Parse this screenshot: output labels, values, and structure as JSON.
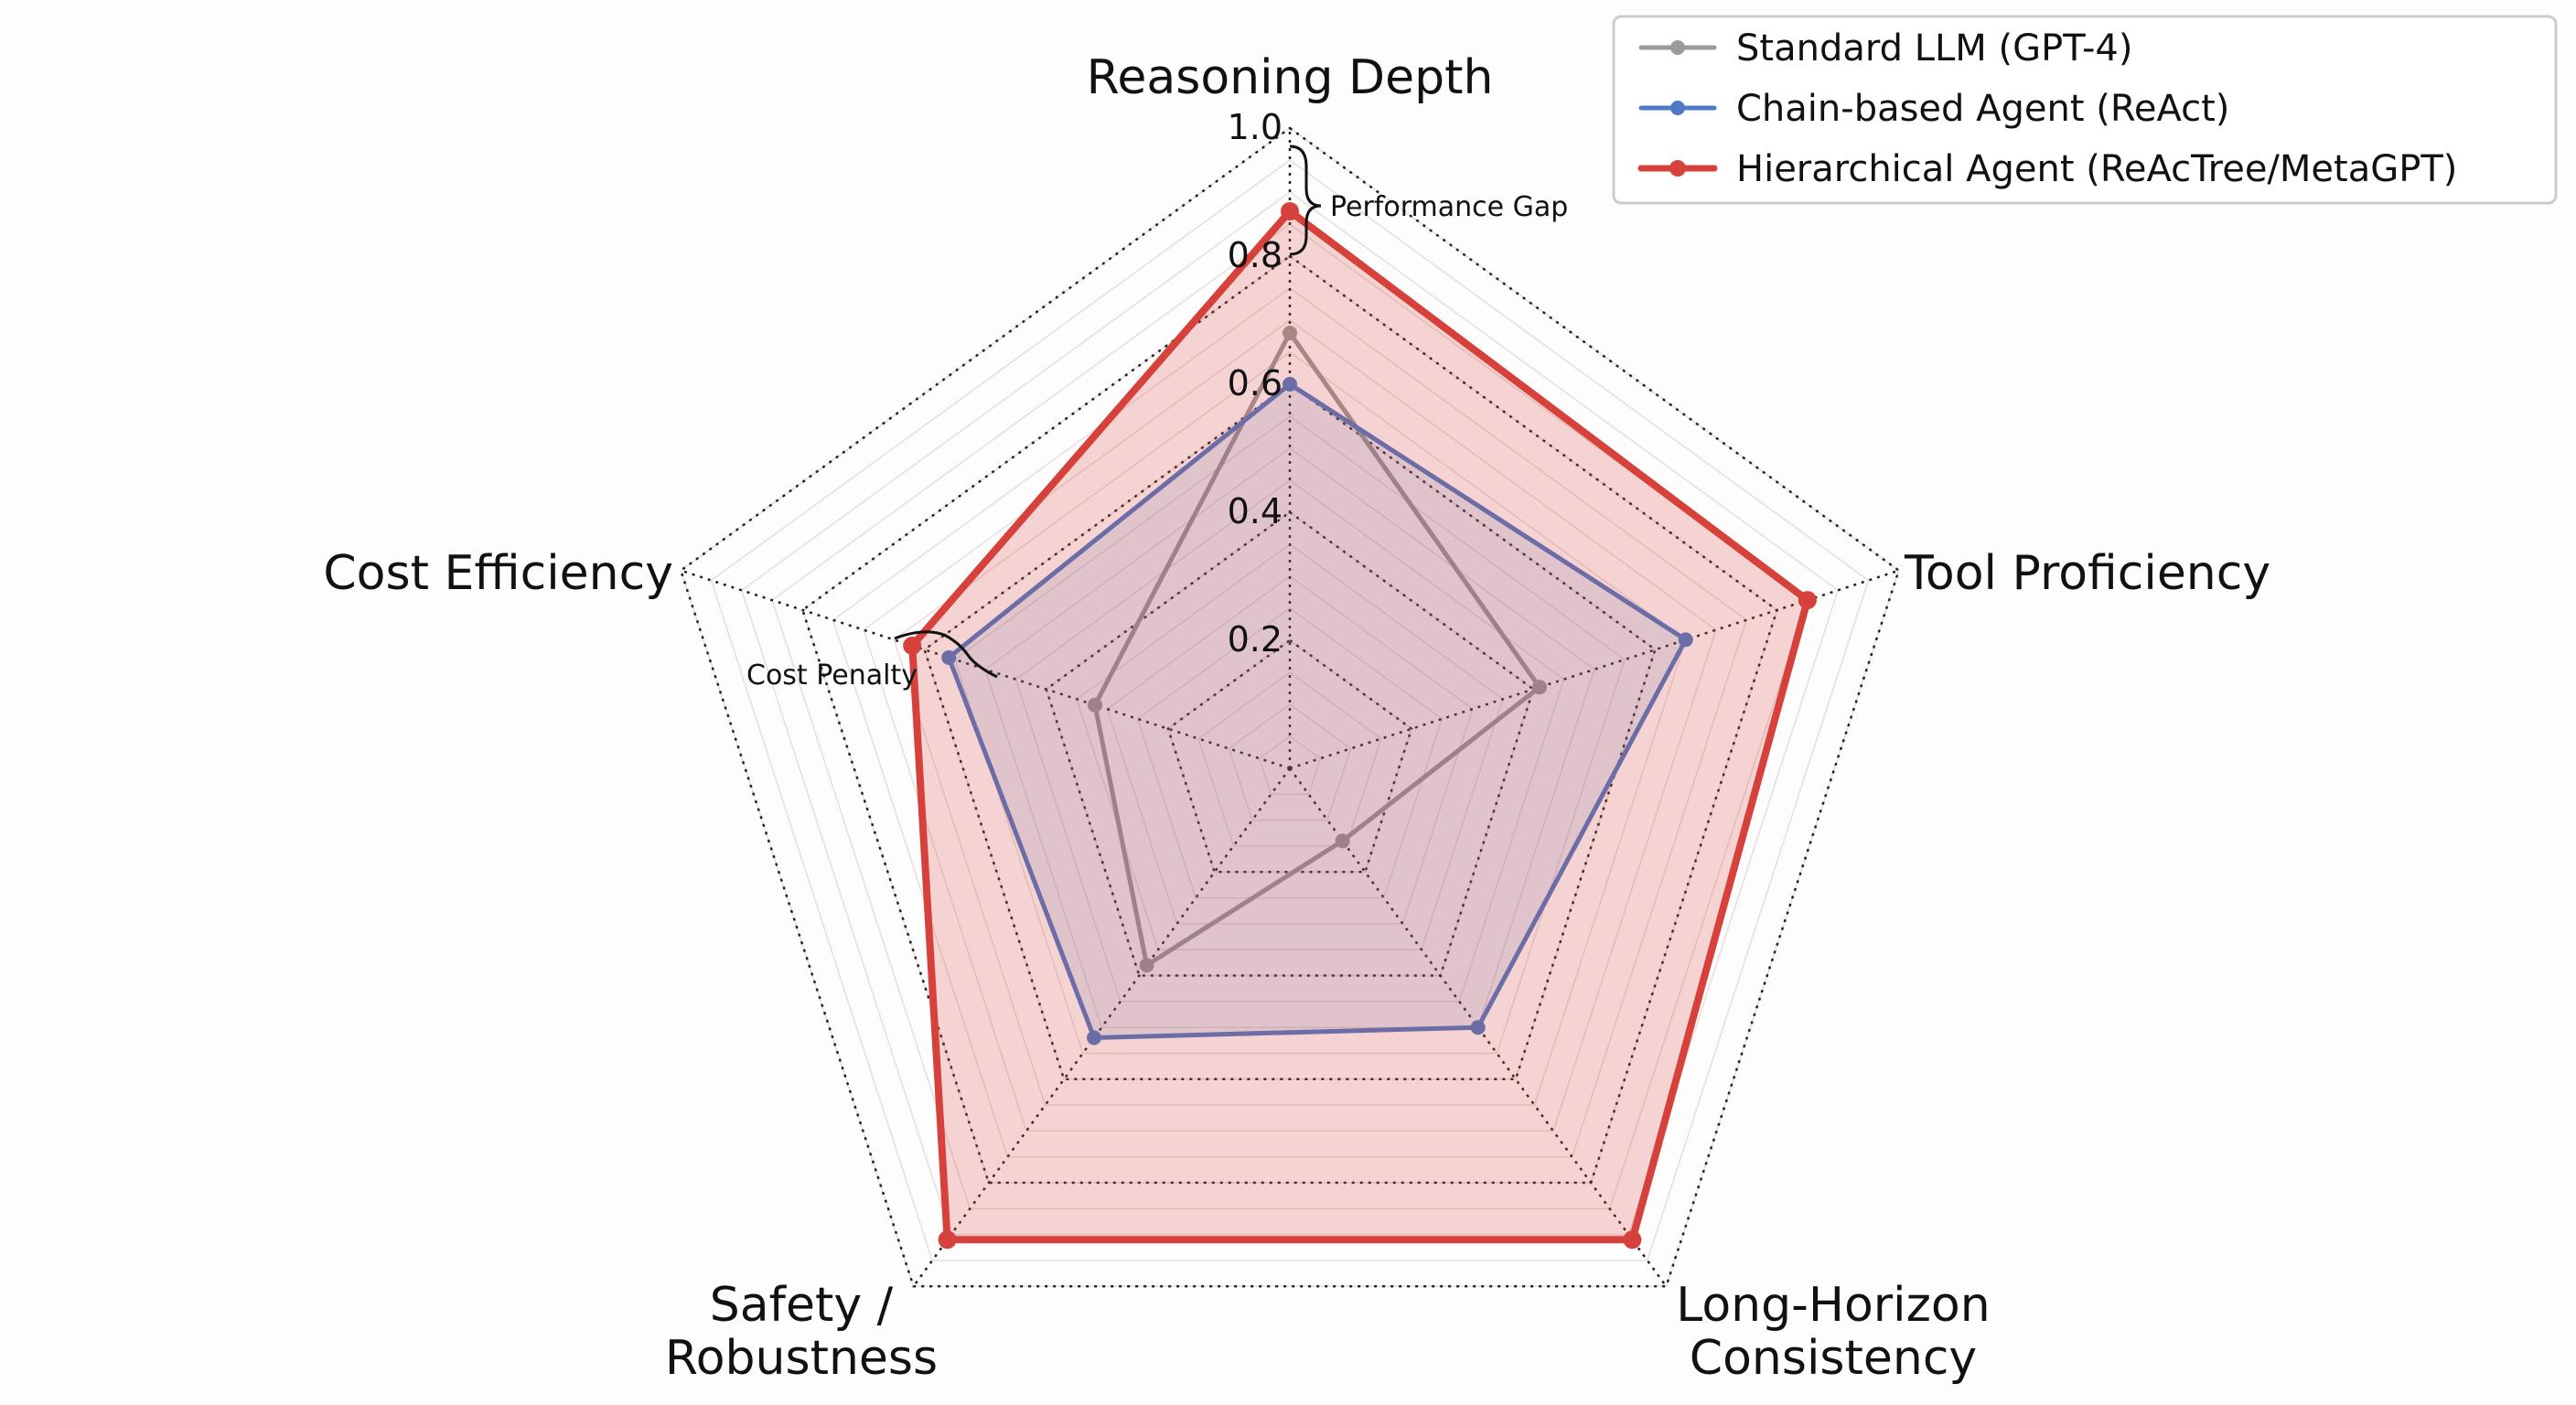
{
  "chart_data": {
    "type": "radar",
    "axes": [
      {
        "label_lines": [
          "Reasoning Depth"
        ]
      },
      {
        "label_lines": [
          "Tool Proficiency"
        ]
      },
      {
        "label_lines": [
          "Long-Horizon",
          "Consistency"
        ]
      },
      {
        "label_lines": [
          "Safety /",
          "Robustness"
        ]
      },
      {
        "label_lines": [
          "Cost Efficiency"
        ]
      }
    ],
    "rlim": [
      0,
      1.0
    ],
    "ticks": [
      {
        "value": 0.2,
        "label": "0.2"
      },
      {
        "value": 0.4,
        "label": "0.4"
      },
      {
        "value": 0.6,
        "label": "0.6"
      },
      {
        "value": 0.8,
        "label": "0.8"
      },
      {
        "value": 1.0,
        "label": "1.0"
      }
    ],
    "series": [
      {
        "name": "Standard LLM (GPT-4)",
        "color": "#9a9a9a",
        "values": [
          0.68,
          0.41,
          0.14,
          0.38,
          0.32
        ],
        "fill": false
      },
      {
        "name": "Chain-based Agent (ReAct)",
        "color": "#4f79c4",
        "values": [
          0.6,
          0.65,
          0.5,
          0.52,
          0.56
        ],
        "fill": true
      },
      {
        "name": "Hierarchical Agent (ReAcTree/MetaGPT)",
        "color": "#d6413b",
        "values": [
          0.87,
          0.85,
          0.91,
          0.91,
          0.62
        ],
        "fill": true
      }
    ],
    "annotations": [
      {
        "text": "Performance Gap"
      },
      {
        "text": "Cost Penalty"
      }
    ],
    "legend_position": "top-right"
  }
}
